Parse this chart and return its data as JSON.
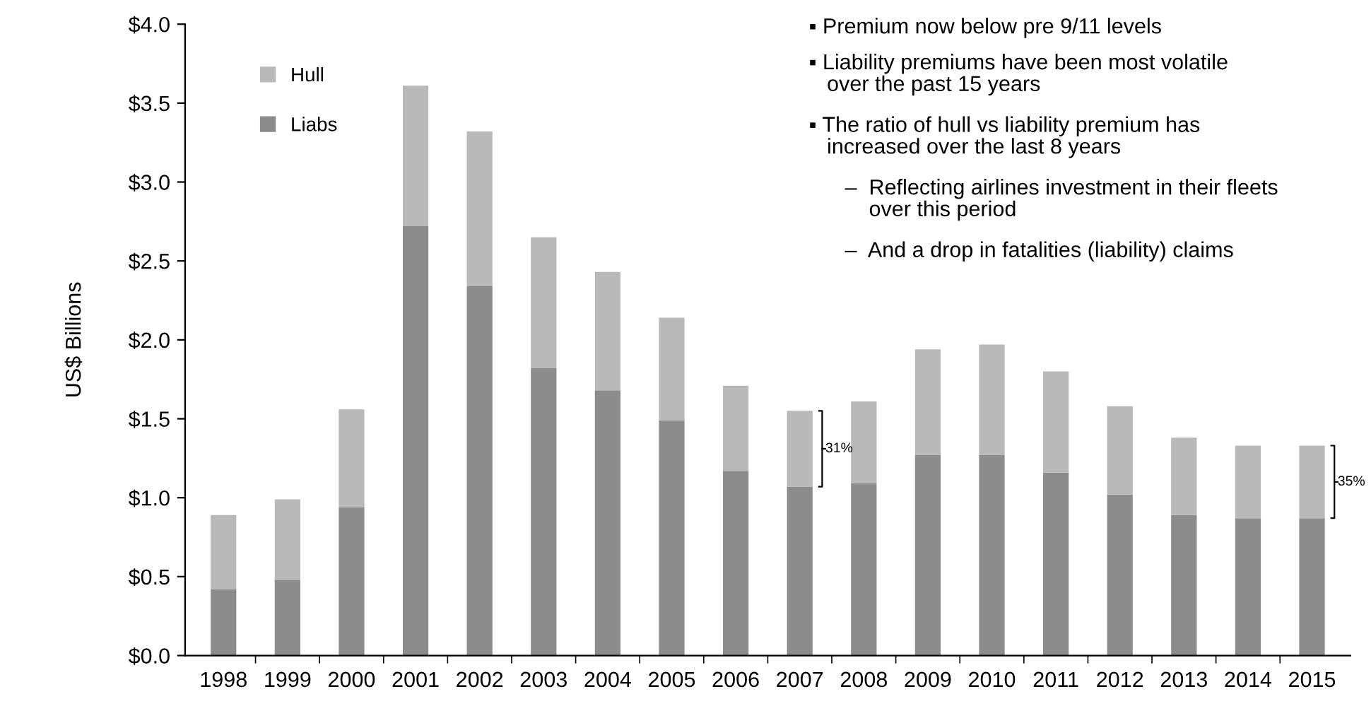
{
  "chart_data": {
    "type": "bar",
    "stacked": true,
    "ylabel": "US$ Billions",
    "categories": [
      "1998",
      "1999",
      "2000",
      "2001",
      "2002",
      "2003",
      "2004",
      "2005",
      "2006",
      "2007",
      "2008",
      "2009",
      "2010",
      "2011",
      "2012",
      "2013",
      "2014",
      "2015"
    ],
    "series": [
      {
        "name": "Liabs",
        "color": "#8c8c8c",
        "values": [
          0.42,
          0.48,
          0.94,
          2.72,
          2.34,
          1.82,
          1.68,
          1.49,
          1.17,
          1.07,
          1.09,
          1.27,
          1.27,
          1.16,
          1.02,
          0.89,
          0.87,
          0.87
        ]
      },
      {
        "name": "Hull",
        "color": "#b9b9b9",
        "values": [
          0.47,
          0.51,
          0.62,
          0.89,
          0.98,
          0.83,
          0.75,
          0.65,
          0.54,
          0.48,
          0.52,
          0.67,
          0.7,
          0.64,
          0.56,
          0.49,
          0.46,
          0.46
        ]
      }
    ],
    "ylim": [
      0,
      4
    ],
    "yticks": [
      {
        "value": 0,
        "label": "$0.0"
      },
      {
        "value": 0.5,
        "label": "$0.5"
      },
      {
        "value": 1,
        "label": "$1.0"
      },
      {
        "value": 1.5,
        "label": "$1.5"
      },
      {
        "value": 2,
        "label": "$2.0"
      },
      {
        "value": 2.5,
        "label": "$2.5"
      },
      {
        "value": 3,
        "label": "$3.0"
      },
      {
        "value": 3.5,
        "label": "$3.5"
      },
      {
        "value": 4,
        "label": "$4.0"
      }
    ],
    "grid": false,
    "legend": "top left",
    "annotations": [
      "▪ Premium now below pre 9/11 levels",
      "▪ Liability premiums have been most volatile\n   over the past 15 years",
      "▪ The ratio of hull vs liability premium has\n   increased over the last 8 years",
      "      –  Reflecting airlines investment in their fleets\n          over this period",
      "      –  And a drop in fatalities (liability) claims",
      "31%",
      "35%"
    ]
  }
}
